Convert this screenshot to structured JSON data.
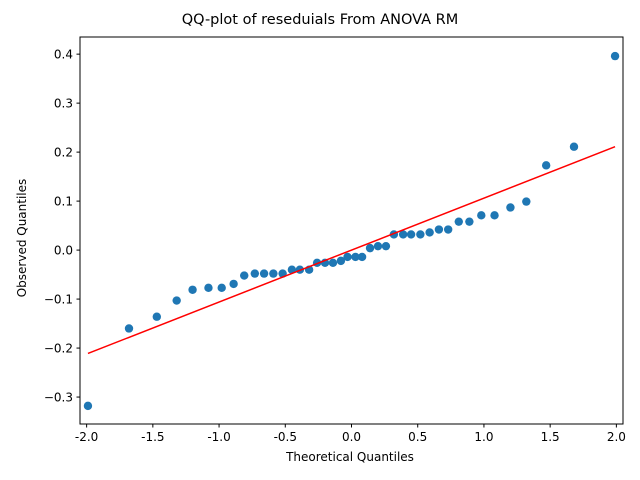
{
  "chart_data": {
    "type": "scatter",
    "title": "QQ-plot of reseduials From ANOVA RM",
    "xlabel": "Theoretical Quantiles",
    "ylabel": "Observed Quantiles",
    "xlim": [
      -2.05,
      2.05
    ],
    "ylim": [
      -0.355,
      0.435
    ],
    "xticks": [
      -2.0,
      -1.5,
      -1.0,
      -0.5,
      0.0,
      0.5,
      1.0,
      1.5,
      2.0
    ],
    "xtick_labels": [
      "-2.0",
      "-1.5",
      "-1.0",
      "-0.5",
      "0.0",
      "0.5",
      "1.0",
      "1.5",
      "2.0"
    ],
    "yticks": [
      -0.3,
      -0.2,
      -0.1,
      0.0,
      0.1,
      0.2,
      0.3,
      0.4
    ],
    "ytick_labels": [
      "−0.3",
      "−0.2",
      "−0.1",
      "0.0",
      "0.1",
      "0.2",
      "0.3",
      "0.4"
    ],
    "grid": false,
    "point_color": "#1f77b4",
    "line_color": "#ff0000",
    "points": {
      "x": [
        -1.99,
        -1.68,
        -1.47,
        -1.32,
        -1.2,
        -1.08,
        -0.98,
        -0.89,
        -0.81,
        -0.73,
        -0.66,
        -0.59,
        -0.52,
        -0.45,
        -0.39,
        -0.32,
        -0.26,
        -0.2,
        -0.14,
        -0.08,
        -0.03,
        0.03,
        0.08,
        0.14,
        0.2,
        0.26,
        0.32,
        0.39,
        0.45,
        0.52,
        0.59,
        0.66,
        0.73,
        0.81,
        0.89,
        0.98,
        1.08,
        1.2,
        1.32,
        1.47,
        1.68,
        1.99
      ],
      "y": [
        -0.318,
        -0.16,
        -0.136,
        -0.103,
        -0.081,
        -0.077,
        -0.077,
        -0.069,
        -0.052,
        -0.048,
        -0.048,
        -0.048,
        -0.048,
        -0.04,
        -0.04,
        -0.04,
        -0.026,
        -0.026,
        -0.026,
        -0.022,
        -0.014,
        -0.014,
        -0.014,
        0.004,
        0.008,
        0.008,
        0.032,
        0.032,
        0.032,
        0.032,
        0.036,
        0.042,
        0.042,
        0.058,
        0.058,
        0.071,
        0.071,
        0.087,
        0.099,
        0.173,
        0.211,
        0.396
      ]
    },
    "reference_line": {
      "x": [
        -1.99,
        1.99
      ],
      "y": [
        -0.211,
        0.211
      ]
    }
  }
}
